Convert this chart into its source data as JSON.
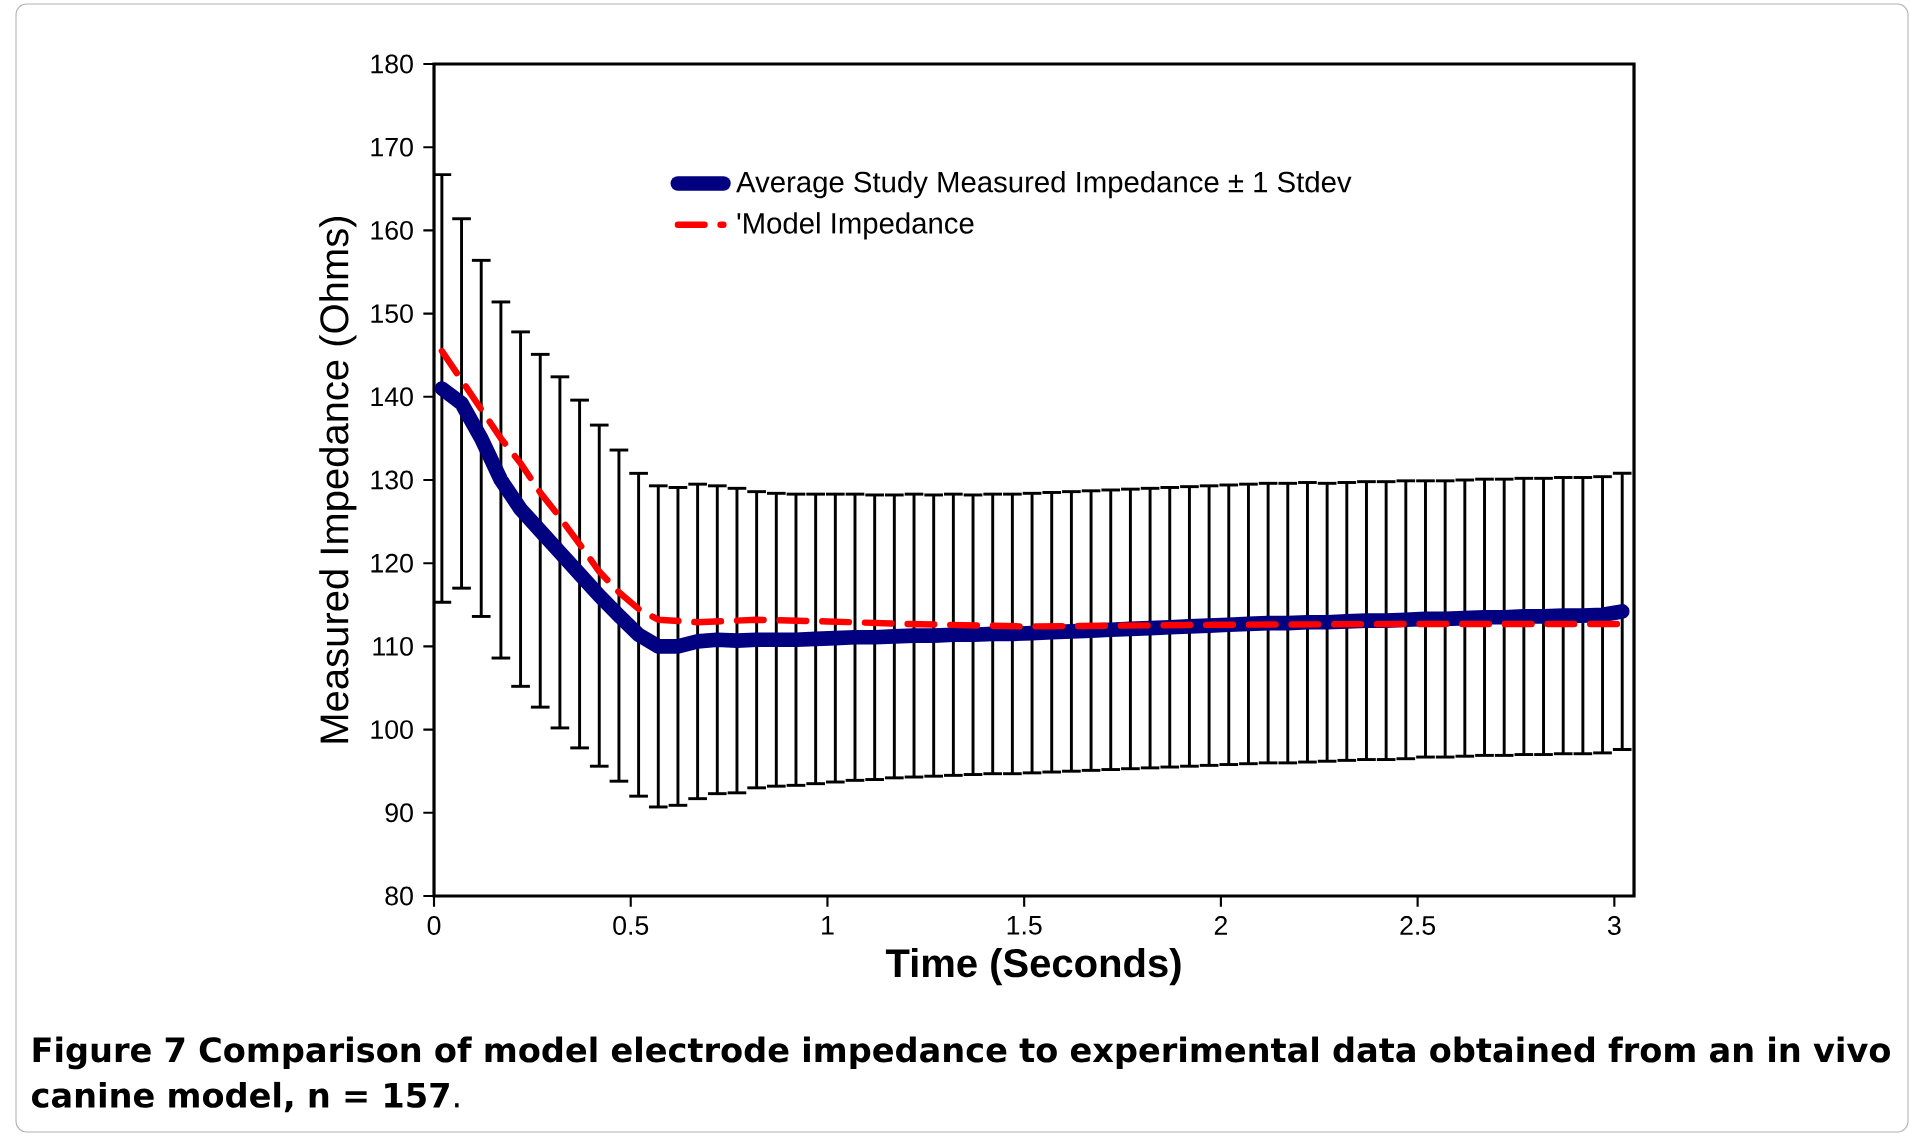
{
  "chart_data": {
    "type": "line",
    "xlabel": "Time (Seconds)",
    "ylabel": "Measured Impedance (Ohms)",
    "xlim": [
      0,
      3.05
    ],
    "ylim": [
      80,
      180
    ],
    "xticks": [
      0,
      0.5,
      1,
      1.5,
      2,
      2.5,
      3
    ],
    "yticks": [
      80,
      90,
      100,
      110,
      120,
      130,
      140,
      150,
      160,
      170,
      180
    ],
    "legend": "top",
    "series": [
      {
        "name": "Average Study Measured Impedance ± 1 Stdev",
        "color": "#000080",
        "line_style": "solid",
        "x": [
          0.02,
          0.07,
          0.12,
          0.17,
          0.22,
          0.27,
          0.32,
          0.37,
          0.42,
          0.47,
          0.52,
          0.57,
          0.62,
          0.67,
          0.72,
          0.77,
          0.82,
          0.87,
          0.92,
          0.97,
          1.02,
          1.07,
          1.12,
          1.17,
          1.22,
          1.27,
          1.32,
          1.37,
          1.42,
          1.47,
          1.52,
          1.57,
          1.62,
          1.67,
          1.72,
          1.77,
          1.82,
          1.87,
          1.92,
          1.97,
          2.02,
          2.07,
          2.12,
          2.17,
          2.22,
          2.27,
          2.32,
          2.37,
          2.42,
          2.47,
          2.52,
          2.57,
          2.62,
          2.67,
          2.72,
          2.77,
          2.82,
          2.87,
          2.92,
          2.97,
          3.02
        ],
        "values": [
          141,
          139.2,
          135,
          130,
          126.5,
          123.9,
          121.3,
          118.7,
          116.1,
          113.7,
          111.4,
          110,
          110,
          110.6,
          110.8,
          110.7,
          110.8,
          110.8,
          110.8,
          110.9,
          111,
          111.1,
          111.1,
          111.2,
          111.3,
          111.3,
          111.4,
          111.4,
          111.5,
          111.5,
          111.6,
          111.7,
          111.8,
          111.9,
          112,
          112.1,
          112.2,
          112.3,
          112.4,
          112.5,
          112.6,
          112.7,
          112.8,
          112.8,
          112.9,
          112.9,
          113,
          113.1,
          113.1,
          113.2,
          113.3,
          113.3,
          113.4,
          113.5,
          113.5,
          113.6,
          113.6,
          113.7,
          113.7,
          113.8,
          114.2
        ],
        "errors": [
          25.7,
          22.2,
          21.4,
          21.4,
          21.3,
          21.2,
          21.1,
          20.9,
          20.5,
          19.9,
          19.4,
          19.3,
          19.1,
          18.9,
          18.5,
          18.3,
          17.8,
          17.6,
          17.5,
          17.4,
          17.3,
          17.2,
          17.1,
          17,
          17,
          16.9,
          16.9,
          16.8,
          16.8,
          16.8,
          16.8,
          16.8,
          16.8,
          16.8,
          16.8,
          16.8,
          16.8,
          16.8,
          16.8,
          16.8,
          16.8,
          16.8,
          16.8,
          16.8,
          16.8,
          16.7,
          16.7,
          16.7,
          16.7,
          16.7,
          16.6,
          16.6,
          16.6,
          16.6,
          16.6,
          16.6,
          16.6,
          16.6,
          16.6,
          16.6,
          16.6
        ]
      },
      {
        "name": "'Model Impedance",
        "color": "#ff0000",
        "line_style": "dashed",
        "x": [
          0.02,
          0.07,
          0.12,
          0.17,
          0.22,
          0.27,
          0.32,
          0.37,
          0.42,
          0.47,
          0.52,
          0.57,
          0.67,
          0.82,
          1.0,
          1.2,
          1.5,
          2.0,
          2.5,
          3.02
        ],
        "values": [
          145.5,
          142,
          138.5,
          135,
          132,
          128.5,
          125.5,
          122.3,
          119,
          116.5,
          114.5,
          113.2,
          112.9,
          113.2,
          113,
          112.7,
          112.4,
          112.6,
          112.7,
          112.7
        ]
      }
    ],
    "annotations": [
      "**Figure 7 Comparison of model electrode impedance to experimental data obtained from an in vivo canine model, n = 157**."
    ]
  }
}
